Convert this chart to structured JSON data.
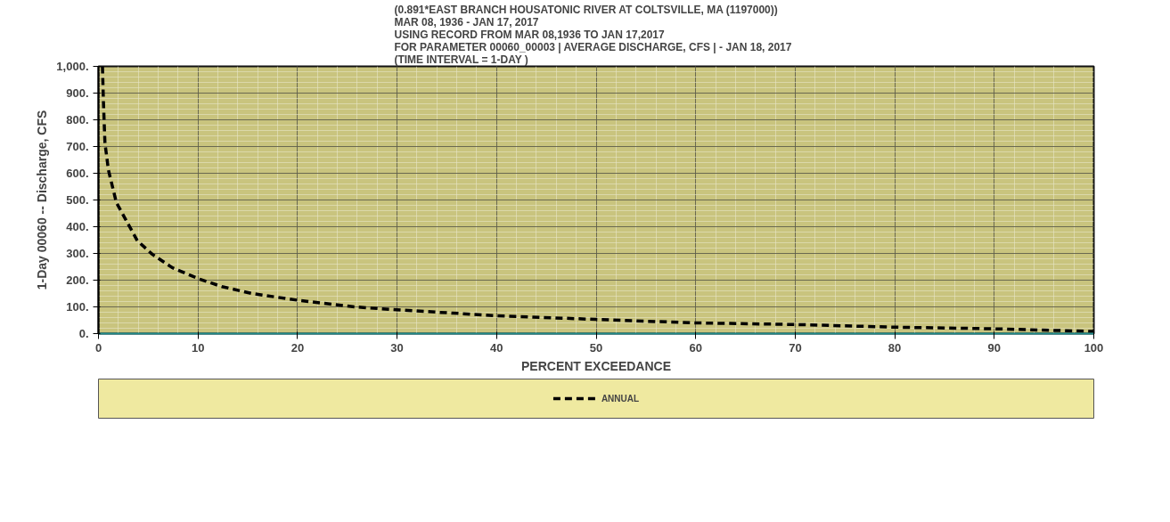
{
  "chart_data": {
    "type": "line",
    "title": "(0.891*EAST BRANCH HOUSATONIC RIVER AT COLTSVILLE, MA (1197000))\nMAR 08, 1936 -  JAN 17, 2017\nUSING RECORD FROM MAR 08,1936 TO JAN 17,2017\nFOR PARAMETER 00060_00003 |  AVERAGE  DISCHARGE, CFS | - JAN 18, 2017\n(TIME INTERVAL  = 1-DAY )",
    "xlabel": "PERCENT EXCEEDANCE",
    "ylabel": "1-Day 00060 -- Discharge, CFS",
    "xlim": [
      0,
      100
    ],
    "ylim": [
      0,
      1000
    ],
    "xticks": [
      0,
      10,
      20,
      30,
      40,
      50,
      60,
      70,
      80,
      90,
      100
    ],
    "yticks": [
      {
        "value": 0,
        "label": "0."
      },
      {
        "value": 100,
        "label": "100."
      },
      {
        "value": 200,
        "label": "200."
      },
      {
        "value": 300,
        "label": "300."
      },
      {
        "value": 400,
        "label": "400."
      },
      {
        "value": 500,
        "label": "500."
      },
      {
        "value": 600,
        "label": "600."
      },
      {
        "value": 700,
        "label": "700."
      },
      {
        "value": 800,
        "label": "800."
      },
      {
        "value": 900,
        "label": "900."
      },
      {
        "value": 1000,
        "label": "1,000."
      }
    ],
    "grid": true,
    "legend": "bottom",
    "line_style": "dashed",
    "marker": "none",
    "series": [
      {
        "name": "ANNUAL",
        "color": "#000000",
        "x": [
          0.4,
          0.5,
          0.65,
          1.0,
          1.8,
          3.0,
          3.9,
          5.4,
          7.4,
          10,
          12.4,
          15.4,
          20,
          25.7,
          30,
          40,
          50,
          60,
          70,
          80,
          90,
          100
        ],
        "values": [
          1000,
          866,
          714,
          612,
          490,
          409,
          348,
          297,
          247,
          206,
          176,
          150,
          125,
          100,
          89,
          67,
          53,
          40,
          34,
          24,
          18,
          8
        ]
      }
    ]
  }
}
